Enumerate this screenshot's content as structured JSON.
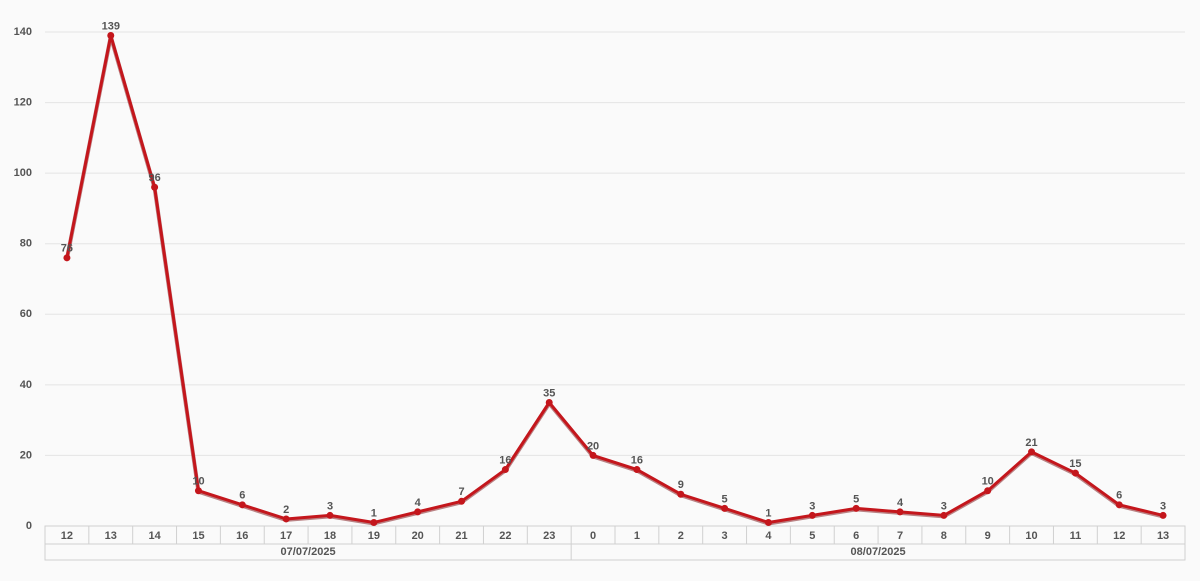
{
  "chart_data": {
    "type": "line",
    "color": "#c4161c",
    "ylim": [
      0,
      140
    ],
    "yticks": [
      0,
      20,
      40,
      60,
      80,
      100,
      120,
      140
    ],
    "grid": true,
    "groups": [
      {
        "label": "07/07/2025",
        "categories": [
          "12",
          "13",
          "14",
          "15",
          "16",
          "17",
          "18",
          "19",
          "20",
          "21",
          "22",
          "23"
        ],
        "values": [
          76,
          139,
          96,
          10,
          6,
          2,
          3,
          1,
          4,
          7,
          16,
          35
        ]
      },
      {
        "label": "08/07/2025",
        "categories": [
          "0",
          "1",
          "2",
          "3",
          "4",
          "5",
          "6",
          "7",
          "8",
          "9",
          "10",
          "11",
          "12",
          "13"
        ],
        "values": [
          20,
          16,
          9,
          5,
          1,
          3,
          5,
          4,
          3,
          10,
          21,
          15,
          6,
          3
        ]
      }
    ]
  }
}
